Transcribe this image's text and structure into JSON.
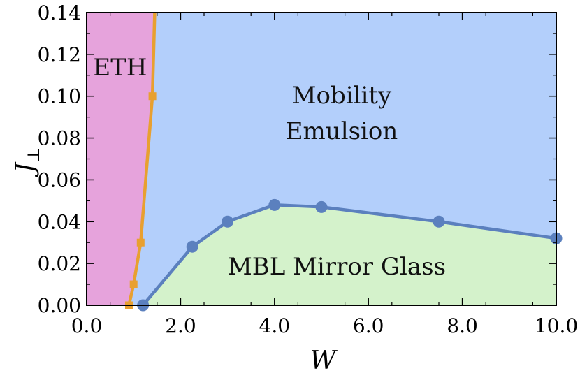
{
  "chart_data": {
    "type": "line",
    "title": "",
    "xlabel": "W",
    "ylabel": "J",
    "ylabel_subscript": "⊥",
    "xlim": [
      0,
      10
    ],
    "ylim": [
      0,
      0.14
    ],
    "x_ticks": [
      0,
      2,
      4,
      6,
      8,
      10
    ],
    "x_tick_labels": [
      "0.0",
      "2.0",
      "4.0",
      "6.0",
      "8.0",
      "10.0"
    ],
    "y_ticks": [
      0,
      0.02,
      0.04,
      0.06,
      0.08,
      0.1,
      0.12,
      0.14
    ],
    "y_tick_labels": [
      "0.00",
      "0.02",
      "0.04",
      "0.06",
      "0.08",
      "0.10",
      "0.12",
      "0.14"
    ],
    "grid": false,
    "regions": [
      {
        "label": "ETH",
        "color": "#e6a3dc"
      },
      {
        "label_lines": [
          "Mobility",
          "Emulsion"
        ],
        "color": "#b3cffb"
      },
      {
        "label": "MBL Mirror Glass",
        "color": "#d4f2cb"
      }
    ],
    "series": [
      {
        "color": "#e8a030",
        "marker": "square",
        "points": [
          {
            "x": 0.9,
            "y": 0.0
          },
          {
            "x": 1.0,
            "y": 0.01
          },
          {
            "x": 1.15,
            "y": 0.03
          },
          {
            "x": 1.4,
            "y": 0.1
          },
          {
            "x": 1.45,
            "y": 0.14
          }
        ],
        "markers_shown": [
          0,
          1,
          2,
          3
        ]
      },
      {
        "color": "#5b80be",
        "marker": "circle",
        "points": [
          {
            "x": 1.2,
            "y": 0.0
          },
          {
            "x": 2.25,
            "y": 0.028
          },
          {
            "x": 3.0,
            "y": 0.04
          },
          {
            "x": 4.0,
            "y": 0.048
          },
          {
            "x": 5.0,
            "y": 0.047
          },
          {
            "x": 7.5,
            "y": 0.04
          },
          {
            "x": 10.0,
            "y": 0.032
          }
        ],
        "markers_shown": [
          0,
          1,
          2,
          3,
          4,
          5,
          6
        ]
      }
    ]
  }
}
